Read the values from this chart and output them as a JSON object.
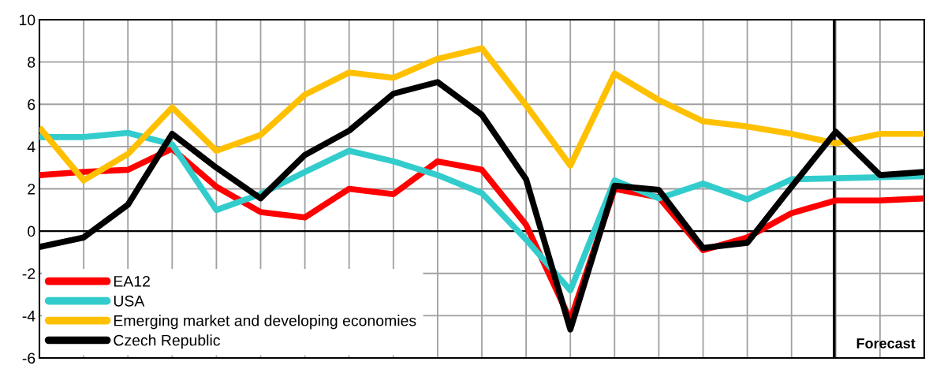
{
  "chart_data": {
    "type": "line",
    "categories": [
      null,
      null,
      null,
      null,
      null,
      null,
      null,
      null,
      null,
      null,
      null,
      null,
      null,
      null,
      null,
      null,
      null,
      null,
      null,
      null,
      null
    ],
    "ylim": [
      -6,
      10
    ],
    "yticks": [
      -6,
      -4,
      -2,
      0,
      2,
      4,
      6,
      8,
      10
    ],
    "tick_labels": "y",
    "grid": true,
    "legend": "bottom left",
    "marker": "none",
    "line_style": "solid",
    "series": [
      {
        "name": "EA12",
        "color": "#ff0000",
        "values": [
          2.65,
          2.8,
          2.9,
          3.9,
          2.1,
          0.9,
          0.65,
          2.0,
          1.75,
          3.3,
          2.9,
          0.3,
          -4.2,
          2.0,
          1.6,
          -0.9,
          -0.3,
          0.85,
          1.45,
          1.45,
          1.55
        ]
      },
      {
        "name": "USA",
        "color": "#33cccc",
        "values": [
          4.45,
          4.45,
          4.65,
          4.1,
          1.0,
          1.75,
          2.8,
          3.8,
          3.3,
          2.65,
          1.8,
          -0.4,
          -2.8,
          2.4,
          1.55,
          2.25,
          1.5,
          2.45,
          2.5,
          2.55,
          2.6
        ]
      },
      {
        "name": "Emerging market and developing economies",
        "color": "#ffc000",
        "values": [
          4.9,
          2.4,
          3.65,
          5.85,
          3.8,
          4.55,
          6.45,
          7.5,
          7.25,
          8.15,
          8.65,
          5.95,
          3.1,
          7.45,
          6.2,
          5.2,
          4.95,
          4.6,
          4.15,
          4.6,
          4.6
        ]
      },
      {
        "name": "Czech Republic",
        "color": "#000000",
        "values": [
          -0.75,
          -0.3,
          1.25,
          4.6,
          3.0,
          1.55,
          3.6,
          4.75,
          6.5,
          7.05,
          5.5,
          2.45,
          -4.65,
          2.15,
          1.95,
          -0.8,
          -0.55,
          2.1,
          4.7,
          2.65,
          2.8
        ]
      }
    ],
    "ref_lines": [
      {
        "axis": "y",
        "value": 0,
        "color": "#000000"
      }
    ],
    "annotations": [
      "Forecast"
    ]
  }
}
